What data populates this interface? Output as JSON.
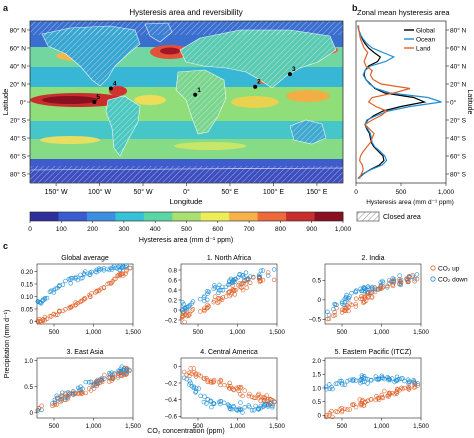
{
  "panel_labels": [
    "a",
    "b",
    "c"
  ],
  "chart_data": [
    {
      "type": "heatmap",
      "panel": "a",
      "title": "Hysteresis area and reversibility",
      "xlabel": "Longitude",
      "ylabel": "Latitude",
      "xticks": [
        "150° W",
        "100° W",
        "50° W",
        "0°",
        "50° E",
        "100° E",
        "150° E"
      ],
      "xtick_values": [
        -150,
        -100,
        -50,
        0,
        50,
        100,
        150
      ],
      "yticks": [
        "80° N",
        "60° N",
        "40° N",
        "20° N",
        "0°",
        "20° S",
        "40° S",
        "60° S",
        "80° S"
      ],
      "ytick_values": [
        80,
        60,
        40,
        20,
        0,
        -20,
        -40,
        -60,
        -80
      ],
      "xlim": [
        -180,
        180
      ],
      "ylim": [
        -90,
        90
      ],
      "markers": [
        {
          "label": "1",
          "lon": 10,
          "lat": 8
        },
        {
          "label": "2",
          "lon": 79,
          "lat": 17
        },
        {
          "label": "3",
          "lon": 119,
          "lat": 31
        },
        {
          "label": "4",
          "lon": -87,
          "lat": 15
        },
        {
          "label": "5",
          "lon": -106,
          "lat": 0
        }
      ],
      "colorbar": {
        "label": "Hysteresis area (mm d⁻¹ ppm)",
        "ticks": [
          "0",
          "100",
          "200",
          "300",
          "400",
          "500",
          "600",
          "700",
          "800",
          "900",
          "1,000"
        ],
        "range": [
          0,
          1000
        ],
        "colors": [
          "#30309a",
          "#3b5bd0",
          "#3c8fe0",
          "#36c2d6",
          "#59d6a3",
          "#a9e071",
          "#eded5a",
          "#f6b14a",
          "#ec6a3b",
          "#c92e2e",
          "#8a0f20"
        ]
      },
      "legend": {
        "label": "Closed area"
      }
    },
    {
      "type": "line",
      "panel": "b",
      "title": "Zonal mean hysteresis area",
      "xlabel": "Hysteresis area (mm d⁻¹ ppm)",
      "ylabel": "Latitude",
      "xticks": [
        "0",
        "500",
        "1,000"
      ],
      "xlim": [
        0,
        1000
      ],
      "ylim": [
        -90,
        90
      ],
      "yticks": [
        "80° N",
        "60° N",
        "40° N",
        "20° N",
        "0°",
        "20° S",
        "40° S",
        "60° S",
        "80° S"
      ],
      "legend_position": "top-right",
      "series": [
        {
          "name": "Global",
          "color": "#000000",
          "lat": [
            -85,
            -80,
            -75,
            -70,
            -65,
            -60,
            -55,
            -50,
            -45,
            -40,
            -35,
            -30,
            -25,
            -20,
            -15,
            -10,
            -5,
            0,
            5,
            10,
            15,
            20,
            25,
            30,
            35,
            40,
            45,
            50,
            55,
            60,
            65,
            70,
            75,
            80,
            85
          ],
          "values": [
            30,
            80,
            160,
            260,
            310,
            300,
            250,
            200,
            170,
            160,
            150,
            120,
            100,
            130,
            200,
            300,
            500,
            760,
            640,
            320,
            210,
            160,
            110,
            90,
            100,
            140,
            240,
            270,
            200,
            140,
            100,
            70,
            50,
            30,
            20
          ]
        },
        {
          "name": "Ocean",
          "color": "#1f8fd6",
          "lat": [
            -85,
            -80,
            -75,
            -70,
            -65,
            -60,
            -55,
            -50,
            -45,
            -40,
            -35,
            -30,
            -25,
            -20,
            -15,
            -10,
            -5,
            0,
            5,
            10,
            15,
            20,
            25,
            30,
            35,
            40,
            45,
            50,
            55,
            60,
            65,
            70,
            75,
            80,
            85
          ],
          "values": [
            20,
            70,
            170,
            290,
            340,
            320,
            270,
            210,
            180,
            170,
            160,
            130,
            100,
            120,
            230,
            360,
            600,
            950,
            800,
            380,
            220,
            150,
            110,
            80,
            100,
            160,
            330,
            420,
            300,
            180,
            120,
            80,
            50,
            30,
            20
          ]
        },
        {
          "name": "Land",
          "color": "#e0622a",
          "lat": [
            -85,
            -80,
            -75,
            -70,
            -65,
            -60,
            -55,
            -50,
            -45,
            -40,
            -35,
            -30,
            -25,
            -20,
            -15,
            -10,
            -5,
            0,
            5,
            10,
            15,
            20,
            25,
            30,
            35,
            40,
            45,
            50,
            55,
            60,
            65,
            70,
            75,
            80,
            85
          ],
          "values": [
            40,
            60,
            80,
            70,
            40,
            50,
            80,
            120,
            160,
            180,
            200,
            150,
            100,
            180,
            280,
            340,
            220,
            140,
            180,
            420,
            600,
            280,
            190,
            160,
            180,
            110,
            90,
            110,
            130,
            90,
            70,
            50,
            40,
            30,
            30
          ]
        }
      ]
    },
    {
      "type": "scatter",
      "panel": "c",
      "xlabel": "CO₂ concentration (ppm)",
      "ylabel": "Precipitation (mm d⁻¹)",
      "legend_position": "right",
      "legend": [
        {
          "label": "CO₂ up",
          "color": "#e0622a"
        },
        {
          "label": "CO₂ down",
          "color": "#1f8fd6"
        }
      ],
      "subplots": [
        {
          "title": "Global average",
          "xlim": [
            285,
            1500
          ],
          "ylim": [
            -0.01,
            0.23
          ],
          "xticks": [
            "500",
            "1,000",
            "1,500"
          ],
          "xtick_values": [
            500,
            1000,
            1500
          ],
          "yticks": [
            "0",
            "0.05",
            "0.10",
            "0.15",
            "0.20"
          ],
          "ytick_values": [
            0,
            0.05,
            0.1,
            0.15,
            0.2
          ],
          "up_curve": [
            [
              285,
              0.0
            ],
            [
              600,
              0.04
            ],
            [
              900,
              0.09
            ],
            [
              1200,
              0.15
            ],
            [
              1450,
              0.21
            ]
          ],
          "down_curve": [
            [
              1450,
              0.22
            ],
            [
              1200,
              0.21
            ],
            [
              900,
              0.19
            ],
            [
              600,
              0.15
            ],
            [
              350,
              0.08
            ]
          ],
          "noise": 0.007
        },
        {
          "title": "1. North Africa",
          "xlim": [
            285,
            1500
          ],
          "ylim": [
            -0.28,
            0.92
          ],
          "xticks": [
            "500",
            "1,000",
            "1,500"
          ],
          "xtick_values": [
            500,
            1000,
            1500
          ],
          "yticks": [
            "−0.2",
            "0",
            "0.2",
            "0.4",
            "0.6",
            "0.8"
          ],
          "ytick_values": [
            -0.2,
            0,
            0.2,
            0.4,
            0.6,
            0.8
          ],
          "up_curve": [
            [
              285,
              -0.15
            ],
            [
              600,
              0.05
            ],
            [
              900,
              0.35
            ],
            [
              1200,
              0.6
            ],
            [
              1450,
              0.7
            ]
          ],
          "down_curve": [
            [
              1450,
              0.72
            ],
            [
              1200,
              0.7
            ],
            [
              900,
              0.55
            ],
            [
              600,
              0.3
            ],
            [
              350,
              0.05
            ]
          ],
          "noise": 0.07
        },
        {
          "title": "2. India",
          "xlim": [
            285,
            1500
          ],
          "ylim": [
            -0.62,
            0.92
          ],
          "xticks": [
            "500",
            "1,000",
            "1,500"
          ],
          "xtick_values": [
            500,
            1000,
            1500
          ],
          "yticks": [
            "−0.5",
            "0",
            "0.5"
          ],
          "ytick_values": [
            -0.5,
            0,
            0.5
          ],
          "up_curve": [
            [
              285,
              -0.5
            ],
            [
              600,
              -0.2
            ],
            [
              900,
              0.2
            ],
            [
              1200,
              0.45
            ],
            [
              1450,
              0.55
            ]
          ],
          "down_curve": [
            [
              1450,
              0.55
            ],
            [
              1200,
              0.5
            ],
            [
              900,
              0.35
            ],
            [
              600,
              0.1
            ],
            [
              350,
              -0.25
            ]
          ],
          "noise": 0.09
        },
        {
          "title": "3. East Asia",
          "xlim": [
            285,
            1500
          ],
          "ylim": [
            -0.1,
            1.05
          ],
          "xticks": [
            "500",
            "1,000",
            "1,500"
          ],
          "xtick_values": [
            500,
            1000,
            1500
          ],
          "yticks": [
            "0",
            "0.5",
            "1.0"
          ],
          "ytick_values": [
            0,
            0.5,
            1.0
          ],
          "up_curve": [
            [
              285,
              0.05
            ],
            [
              600,
              0.25
            ],
            [
              900,
              0.45
            ],
            [
              1200,
              0.65
            ],
            [
              1450,
              0.8
            ]
          ],
          "down_curve": [
            [
              1450,
              0.82
            ],
            [
              1200,
              0.68
            ],
            [
              900,
              0.5
            ],
            [
              600,
              0.3
            ],
            [
              350,
              0.1
            ]
          ],
          "noise": 0.07
        },
        {
          "title": "4. Central America",
          "xlim": [
            285,
            1500
          ],
          "ylim": [
            -0.62,
            0.1
          ],
          "xticks": [
            "500",
            "1,000",
            "1,500"
          ],
          "xtick_values": [
            500,
            1000,
            1500
          ],
          "yticks": [
            "0",
            "−0.2",
            "−0.4",
            "−0.6"
          ],
          "ytick_values": [
            0,
            -0.2,
            -0.4,
            -0.6
          ],
          "up_curve": [
            [
              285,
              -0.02
            ],
            [
              600,
              -0.15
            ],
            [
              900,
              -0.25
            ],
            [
              1200,
              -0.35
            ],
            [
              1450,
              -0.42
            ]
          ],
          "down_curve": [
            [
              1450,
              -0.45
            ],
            [
              1200,
              -0.5
            ],
            [
              900,
              -0.5
            ],
            [
              600,
              -0.4
            ],
            [
              350,
              -0.15
            ]
          ],
          "noise": 0.04
        },
        {
          "title": "5. Eastern Pacific (ITCZ)",
          "xlim": [
            285,
            1500
          ],
          "ylim": [
            -0.1,
            2.1
          ],
          "xticks": [
            "500",
            "1,000",
            "1,500"
          ],
          "xtick_values": [
            500,
            1000,
            1500
          ],
          "yticks": [
            "0",
            "0.5",
            "1.0",
            "1.5",
            "2.0"
          ],
          "ytick_values": [
            0,
            0.5,
            1.0,
            1.5,
            2.0
          ],
          "up_curve": [
            [
              285,
              0.0
            ],
            [
              600,
              0.3
            ],
            [
              900,
              0.6
            ],
            [
              1200,
              0.9
            ],
            [
              1450,
              1.1
            ]
          ],
          "down_curve": [
            [
              1450,
              1.2
            ],
            [
              1200,
              1.3
            ],
            [
              900,
              1.35
            ],
            [
              600,
              1.3
            ],
            [
              350,
              1.0
            ]
          ],
          "noise": 0.1
        }
      ]
    }
  ]
}
